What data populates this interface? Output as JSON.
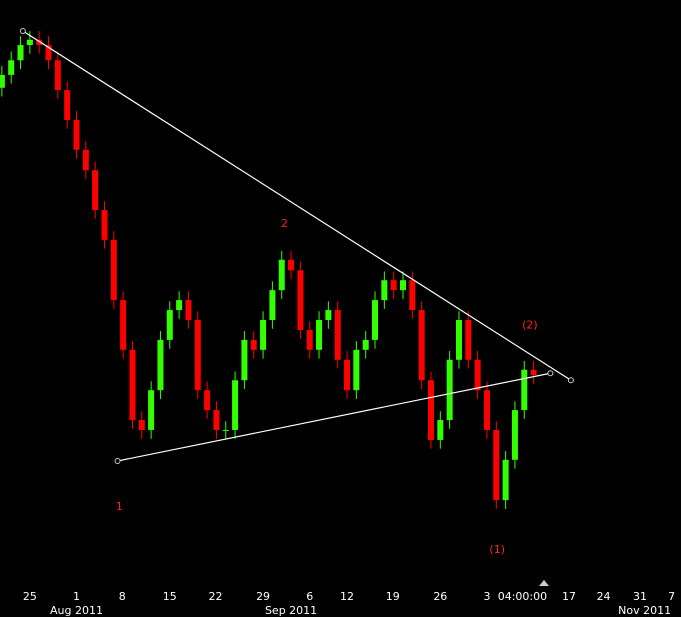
{
  "chart_data": {
    "type": "candlestick",
    "x": [
      -3,
      -2,
      -1,
      0,
      1,
      2,
      3,
      4,
      5,
      6,
      7,
      8,
      9,
      10,
      11,
      12,
      13,
      14,
      15,
      16,
      17,
      18,
      19,
      20,
      21,
      22,
      23,
      24,
      25,
      26,
      27,
      28,
      29,
      30,
      31,
      32,
      33,
      34,
      35,
      36,
      37,
      38,
      39,
      40,
      41,
      42,
      43,
      44,
      45,
      46,
      47,
      48,
      49,
      50,
      51,
      52,
      53,
      54
    ],
    "open": [
      85.0,
      87.2,
      89.7,
      92.3,
      93.2,
      92.3,
      89.7,
      84.6,
      79.5,
      74.4,
      70.9,
      64.1,
      59.0,
      48.7,
      40.2,
      28.2,
      26.5,
      33.3,
      41.9,
      47.0,
      48.7,
      45.3,
      33.3,
      29.9,
      26.5,
      26.5,
      35.0,
      41.9,
      40.2,
      45.3,
      50.4,
      55.6,
      53.8,
      43.6,
      40.2,
      45.3,
      47.0,
      38.5,
      33.3,
      40.2,
      41.9,
      48.7,
      52.1,
      50.4,
      52.1,
      47.0,
      35.0,
      24.8,
      28.2,
      38.5,
      45.3,
      38.5,
      33.3,
      26.5,
      14.5,
      21.4,
      29.9,
      36.8
    ],
    "high": [
      88.7,
      91.2,
      93.8,
      94.7,
      94.7,
      93.8,
      91.2,
      86.1,
      81.0,
      75.9,
      72.4,
      65.6,
      60.5,
      50.2,
      41.7,
      29.7,
      34.8,
      43.4,
      48.5,
      50.2,
      50.2,
      46.8,
      34.8,
      31.4,
      28.0,
      36.5,
      43.4,
      43.4,
      46.8,
      51.9,
      57.1,
      57.1,
      55.3,
      45.1,
      46.8,
      48.5,
      48.5,
      40.0,
      41.7,
      43.4,
      50.2,
      53.6,
      53.6,
      53.6,
      53.6,
      48.5,
      36.5,
      29.7,
      40.0,
      46.8,
      46.8,
      40.0,
      34.8,
      28.0,
      22.9,
      31.4,
      38.3,
      38.3
    ],
    "low": [
      83.5,
      85.7,
      88.2,
      90.8,
      90.8,
      88.2,
      83.1,
      78.0,
      72.9,
      69.4,
      62.6,
      57.5,
      47.2,
      38.7,
      26.7,
      25.0,
      25.0,
      31.8,
      40.4,
      45.5,
      43.8,
      31.8,
      28.4,
      25.0,
      25.0,
      25.0,
      33.5,
      38.7,
      38.7,
      43.8,
      48.9,
      52.3,
      42.1,
      38.7,
      38.7,
      43.8,
      37.0,
      31.8,
      31.8,
      38.7,
      40.4,
      47.2,
      48.9,
      48.9,
      45.5,
      33.5,
      23.3,
      23.3,
      26.7,
      37.0,
      37.0,
      31.8,
      25.0,
      13.0,
      13.0,
      19.9,
      28.4,
      34.4
    ],
    "close": [
      87.2,
      89.7,
      92.3,
      93.2,
      92.3,
      89.7,
      84.6,
      79.5,
      74.4,
      70.9,
      64.1,
      59.0,
      48.7,
      40.2,
      28.2,
      26.5,
      33.3,
      41.9,
      47.0,
      48.7,
      45.3,
      33.3,
      29.9,
      26.5,
      26.5,
      35.0,
      41.9,
      40.2,
      45.3,
      50.4,
      55.6,
      53.8,
      43.6,
      40.2,
      45.3,
      47.0,
      38.5,
      33.3,
      40.2,
      41.9,
      48.7,
      52.1,
      50.4,
      52.1,
      47.0,
      35.0,
      24.8,
      28.2,
      38.5,
      45.3,
      38.5,
      33.3,
      26.5,
      14.5,
      21.4,
      29.9,
      36.8,
      35.9
    ],
    "up_color": "#33ff00",
    "down_color": "#ff0000",
    "xlim": [
      -3.2,
      69.8
    ],
    "ylim": [
      0,
      100
    ],
    "xticks": [
      {
        "value": 0,
        "label": "25"
      },
      {
        "value": 5.0,
        "label": "1"
      },
      {
        "value": 9.9,
        "label": "8"
      },
      {
        "value": 15.0,
        "label": "15"
      },
      {
        "value": 19.9,
        "label": "22"
      },
      {
        "value": 25.0,
        "label": "29"
      },
      {
        "value": 30.0,
        "label": "6"
      },
      {
        "value": 34.0,
        "label": "12"
      },
      {
        "value": 38.9,
        "label": "19"
      },
      {
        "value": 44.0,
        "label": "26"
      },
      {
        "value": 49.0,
        "label": "3"
      },
      {
        "value": 52.8,
        "label": "04:00:00"
      },
      {
        "value": 57.8,
        "label": "17"
      },
      {
        "value": 61.5,
        "label": "24"
      },
      {
        "value": 65.4,
        "label": "31"
      },
      {
        "value": 68.8,
        "label": "7"
      }
    ],
    "month_ticks": [
      {
        "value": 5.0,
        "label": "Aug 2011"
      },
      {
        "value": 28.0,
        "label": "Sep 2011"
      },
      {
        "value": 65.9,
        "label": "Nov 2011"
      }
    ],
    "trendlines": [
      {
        "x": [
          -0.75,
          58.0
        ],
        "y": [
          94.7,
          35.0
        ]
      },
      {
        "x": [
          9.4,
          55.8
        ],
        "y": [
          21.2,
          36.2
        ]
      }
    ],
    "annotations": [
      {
        "text": "1",
        "x": 9.6,
        "y": 13.3
      },
      {
        "text": "2",
        "x": 27.3,
        "y": 61.7
      },
      {
        "text": "(1)",
        "x": 50.1,
        "y": 6.0
      },
      {
        "text": "(2)",
        "x": 53.6,
        "y": 44.4
      }
    ]
  }
}
